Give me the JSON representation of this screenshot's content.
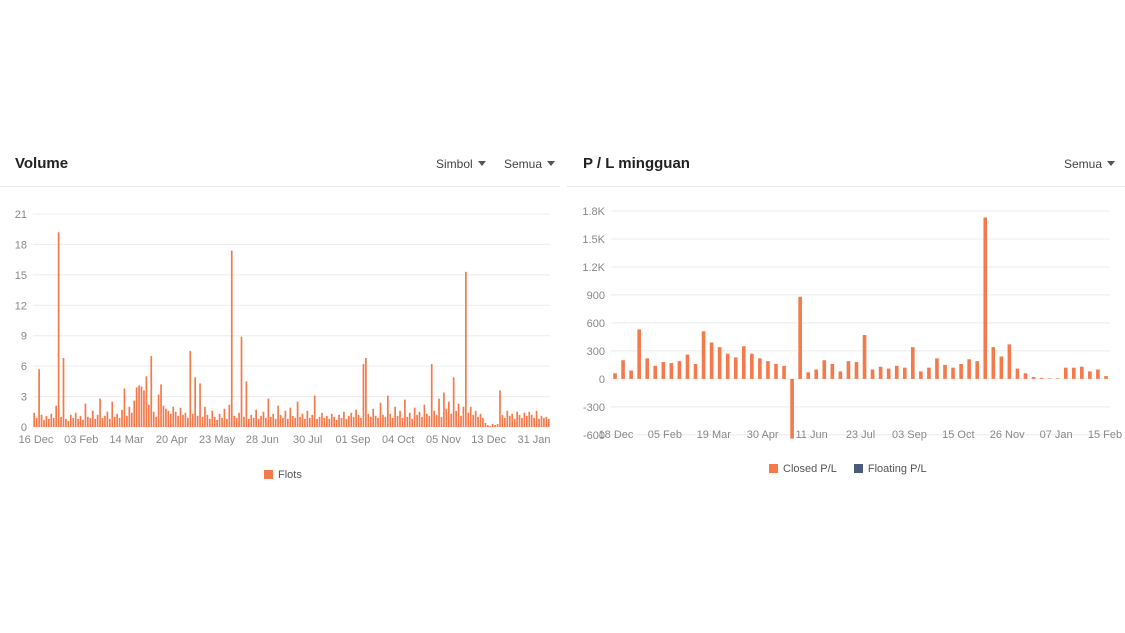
{
  "volume_panel": {
    "title": "Volume",
    "dropdown_symbol": "Simbol",
    "dropdown_filter": "Semua",
    "legend": [
      {
        "label": "Flots",
        "color": "#f47a4c"
      }
    ]
  },
  "pl_panel": {
    "title": "P / L mingguan",
    "dropdown_filter": "Semua",
    "legend": [
      {
        "label": "Closed P/L",
        "color": "#f47a4c"
      },
      {
        "label": "Floating P/L",
        "color": "#4a5a78"
      }
    ]
  },
  "chart_data": [
    {
      "type": "bar",
      "title": "Volume",
      "ylim": [
        0,
        21
      ],
      "y_ticks": [
        "0",
        "3",
        "6",
        "9",
        "12",
        "15",
        "18",
        "21"
      ],
      "x_tick_labels": [
        "16 Dec",
        "03 Feb",
        "14 Mar",
        "20 Apr",
        "23 May",
        "28 Jun",
        "30 Jul",
        "01 Sep",
        "04 Oct",
        "05 Nov",
        "13 Dec",
        "31 Jan"
      ],
      "grid": true,
      "legend_position": "bottom",
      "series": [
        {
          "name": "Flots",
          "color": "#f47a4c",
          "values": [
            1.4,
            0.9,
            5.7,
            1.2,
            0.7,
            1.1,
            0.8,
            1.3,
            0.9,
            2.1,
            19.2,
            1.0,
            6.8,
            0.8,
            0.6,
            1.2,
            0.9,
            1.4,
            0.8,
            1.1,
            0.7,
            2.3,
            1.0,
            0.9,
            1.6,
            0.8,
            1.2,
            2.8,
            0.9,
            1.1,
            1.5,
            0.8,
            2.5,
            1.0,
            1.3,
            0.9,
            1.7,
            3.8,
            1.1,
            2.0,
            1.4,
            2.6,
            3.9,
            4.1,
            4.0,
            3.6,
            5.0,
            2.2,
            7.0,
            1.5,
            1.0,
            3.2,
            4.2,
            2.1,
            1.8,
            1.6,
            1.3,
            2.0,
            1.5,
            1.1,
            1.9,
            1.2,
            1.4,
            0.9,
            7.5,
            1.3,
            4.9,
            1.1,
            4.3,
            1.0,
            2.0,
            1.2,
            0.8,
            1.6,
            1.0,
            0.7,
            1.3,
            0.9,
            1.8,
            0.8,
            2.2,
            17.4,
            1.1,
            0.9,
            1.4,
            8.9,
            1.0,
            4.5,
            0.8,
            1.2,
            0.9,
            1.7,
            0.8,
            1.1,
            1.5,
            0.9,
            2.8,
            1.0,
            1.3,
            0.8,
            2.1,
            1.2,
            0.9,
            1.6,
            0.8,
            1.9,
            1.1,
            0.9,
            2.5,
            1.0,
            1.3,
            0.8,
            1.6,
            0.9,
            1.2,
            3.1,
            0.8,
            1.0,
            1.4,
            0.9,
            1.1,
            0.8,
            1.3,
            1.0,
            0.7,
            1.2,
            0.9,
            1.5,
            0.8,
            1.1,
            1.4,
            1.0,
            1.7,
            1.2,
            0.9,
            6.2,
            6.8,
            1.3,
            1.0,
            1.8,
            1.1,
            0.9,
            2.4,
            1.2,
            1.0,
            3.1,
            1.3,
            0.9,
            2.0,
            1.1,
            1.6,
            0.9,
            2.7,
            1.0,
            1.4,
            0.8,
            1.9,
            1.2,
            1.5,
            1.0,
            2.2,
            1.3,
            1.1,
            6.2,
            1.6,
            1.2,
            2.8,
            1.0,
            3.4,
            1.8,
            2.5,
            1.3,
            4.9,
            1.6,
            2.3,
            1.1,
            2.0,
            15.3,
            1.4,
            2.0,
            1.2,
            1.6,
            1.0,
            1.3,
            0.9,
            0.4,
            0.2,
            0.1,
            0.3,
            0.2,
            0.3,
            3.6,
            1.2,
            0.9,
            1.6,
            1.1,
            1.3,
            0.8,
            1.5,
            1.2,
            0.9,
            1.4,
            1.1,
            1.5,
            1.2,
            0.9,
            1.6,
            0.8,
            1.1,
            0.9,
            1.0,
            0.8
          ]
        }
      ]
    },
    {
      "type": "bar",
      "title": "P / L mingguan",
      "ylim": [
        -720,
        1800
      ],
      "y_ticks": [
        "-600",
        "-300",
        "0",
        "300",
        "600",
        "900",
        "1.2K",
        "1.5K",
        "1.8K"
      ],
      "x_tick_labels": [
        "18 Dec",
        "05 Feb",
        "19 Mar",
        "30 Apr",
        "11 Jun",
        "23 Jul",
        "03 Sep",
        "15 Oct",
        "26 Nov",
        "07 Jan",
        "15 Feb"
      ],
      "grid": true,
      "legend_position": "bottom",
      "series": [
        {
          "name": "Closed P/L",
          "color": "#f47a4c",
          "values": [
            60,
            200,
            90,
            530,
            220,
            140,
            180,
            170,
            190,
            260,
            160,
            510,
            390,
            340,
            270,
            230,
            350,
            270,
            220,
            190,
            160,
            140,
            -640,
            880,
            70,
            100,
            200,
            160,
            80,
            190,
            180,
            470,
            100,
            130,
            110,
            140,
            120,
            340,
            80,
            120,
            220,
            150,
            120,
            160,
            210,
            190,
            1730,
            340,
            240,
            370,
            110,
            60,
            20,
            10,
            5,
            5,
            120,
            120,
            130,
            80,
            100,
            30
          ]
        },
        {
          "name": "Floating P/L",
          "color": "#4a5a78",
          "values": []
        }
      ]
    }
  ]
}
